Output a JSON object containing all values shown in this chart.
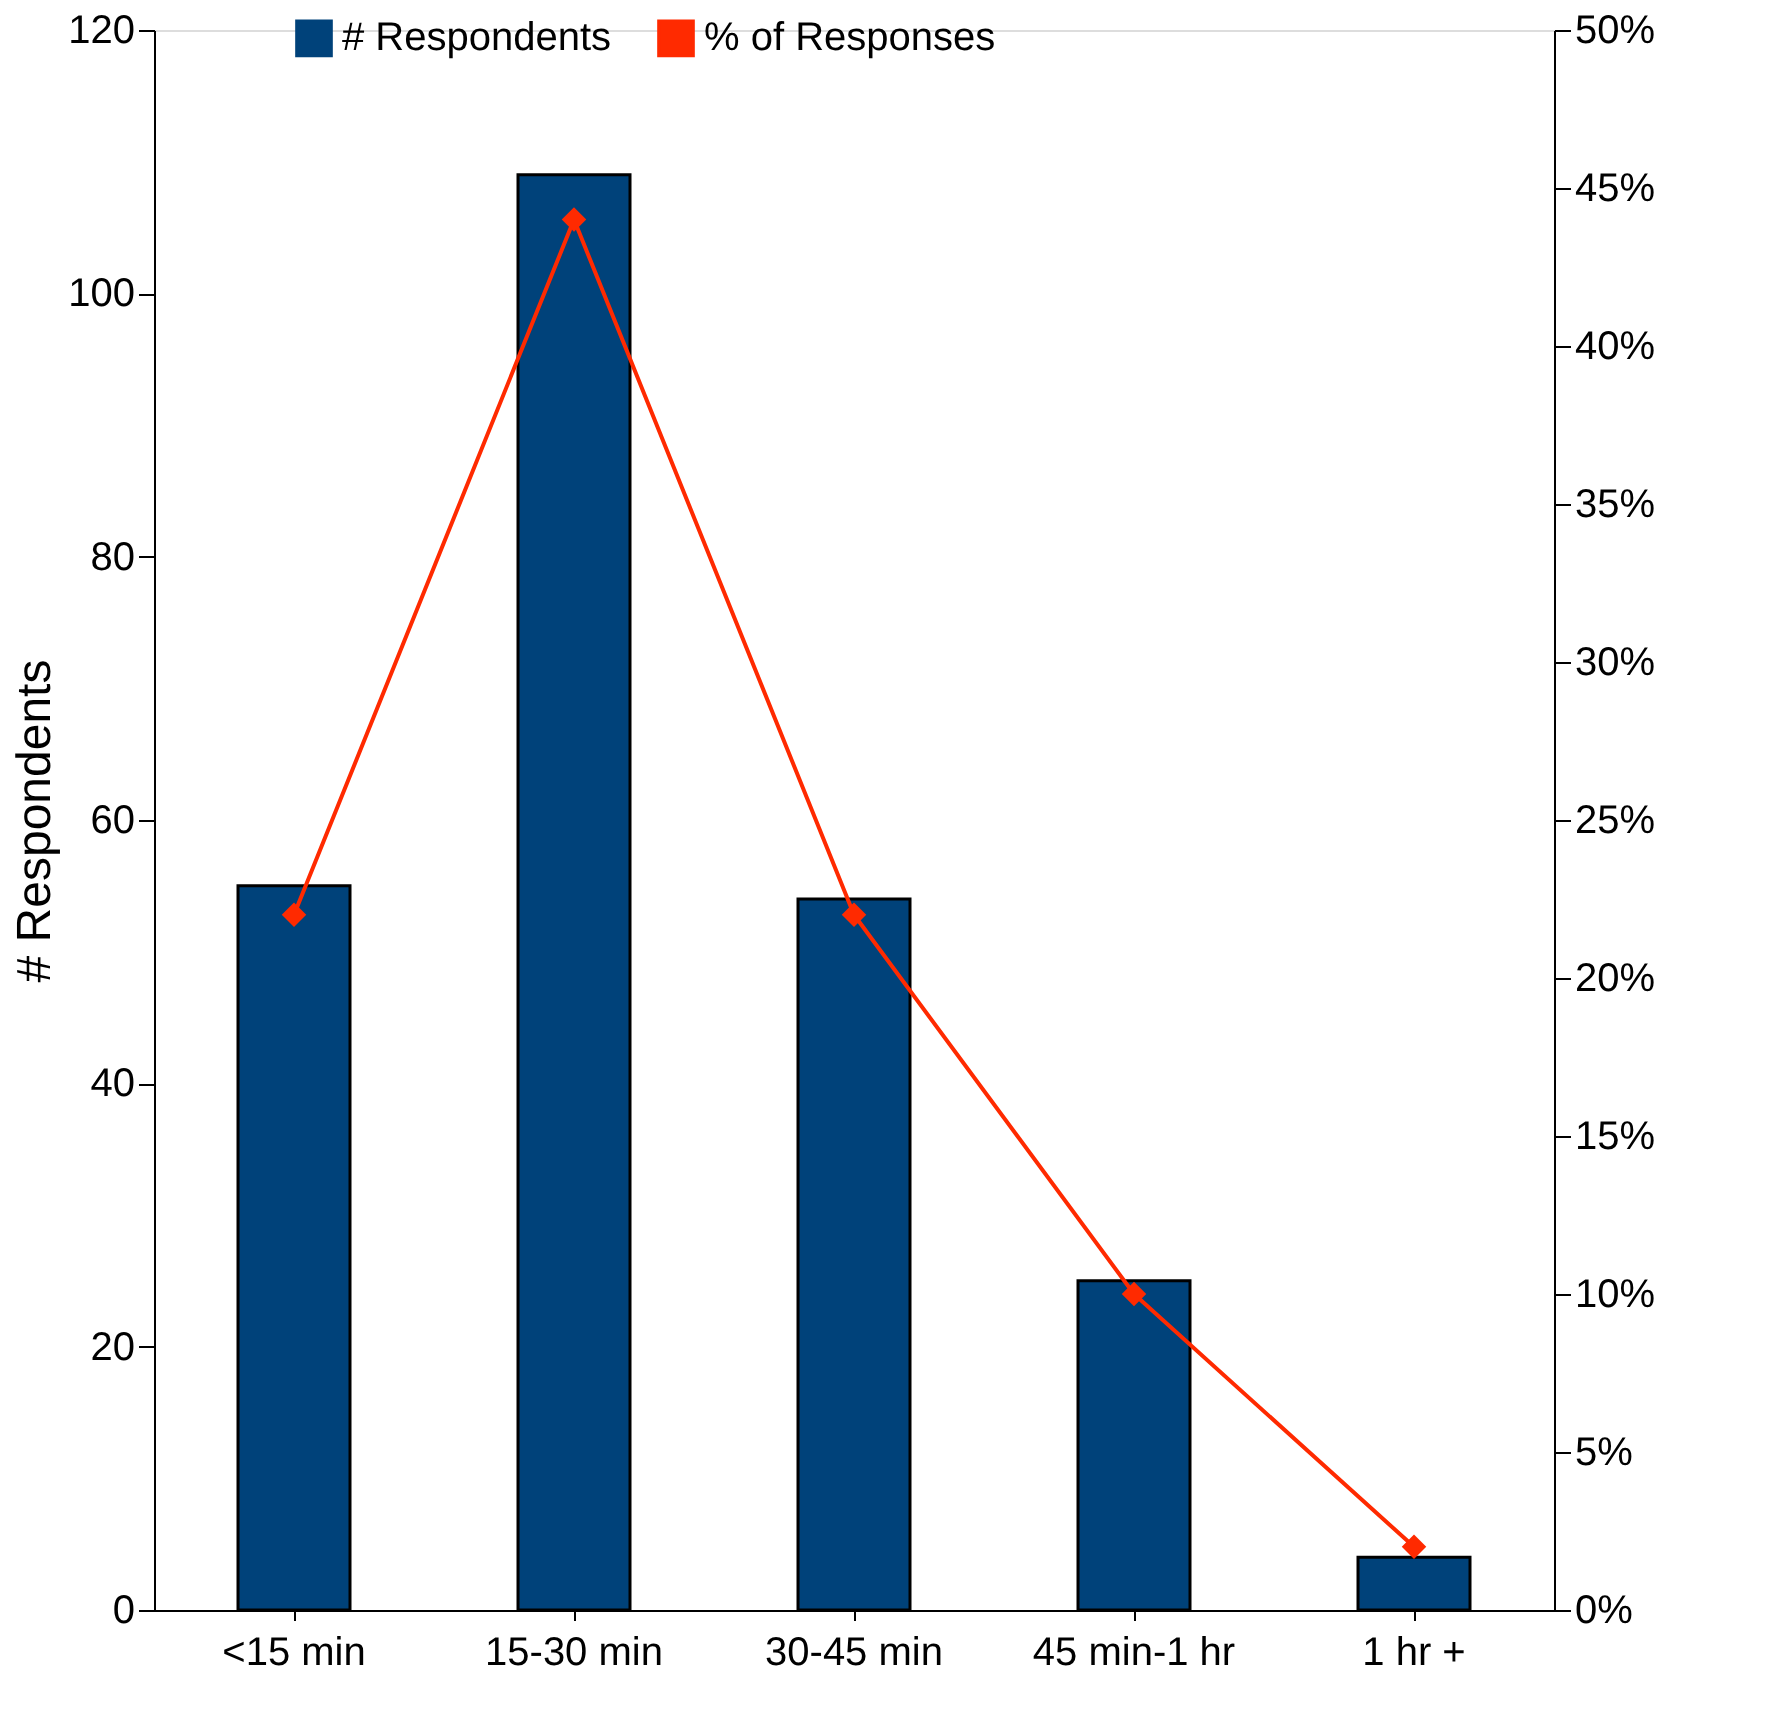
{
  "chart_data": {
    "type": "bar",
    "categories": [
      "<15 min",
      "15-30 min",
      "30-45 min",
      "45 min-1 hr",
      "1 hr +"
    ],
    "ylabel": "# Respondents",
    "ylim": [
      0,
      120
    ],
    "yticks": [
      0,
      20,
      40,
      60,
      80,
      100,
      120
    ],
    "y2lim": [
      0,
      50
    ],
    "y2ticks": [
      {
        "value": 0,
        "label": "0%"
      },
      {
        "value": 5,
        "label": "5%"
      },
      {
        "value": 10,
        "label": "10%"
      },
      {
        "value": 15,
        "label": "15%"
      },
      {
        "value": 20,
        "label": "20%"
      },
      {
        "value": 25,
        "label": "25%"
      },
      {
        "value": 30,
        "label": "30%"
      },
      {
        "value": 35,
        "label": "35%"
      },
      {
        "value": 40,
        "label": "40%"
      },
      {
        "value": 45,
        "label": "45%"
      },
      {
        "value": 50,
        "label": "50%"
      }
    ],
    "grid": false,
    "legend": "top",
    "series": [
      {
        "name": "# Respondents",
        "color": "#00427a",
        "values": [
          55,
          109,
          54,
          25,
          4
        ]
      },
      {
        "name": "% of Responses",
        "type": "line",
        "axis": "y2",
        "color": "#ff2a00",
        "marker": "diamond",
        "values": [
          22,
          44,
          22,
          10,
          2
        ]
      }
    ]
  }
}
